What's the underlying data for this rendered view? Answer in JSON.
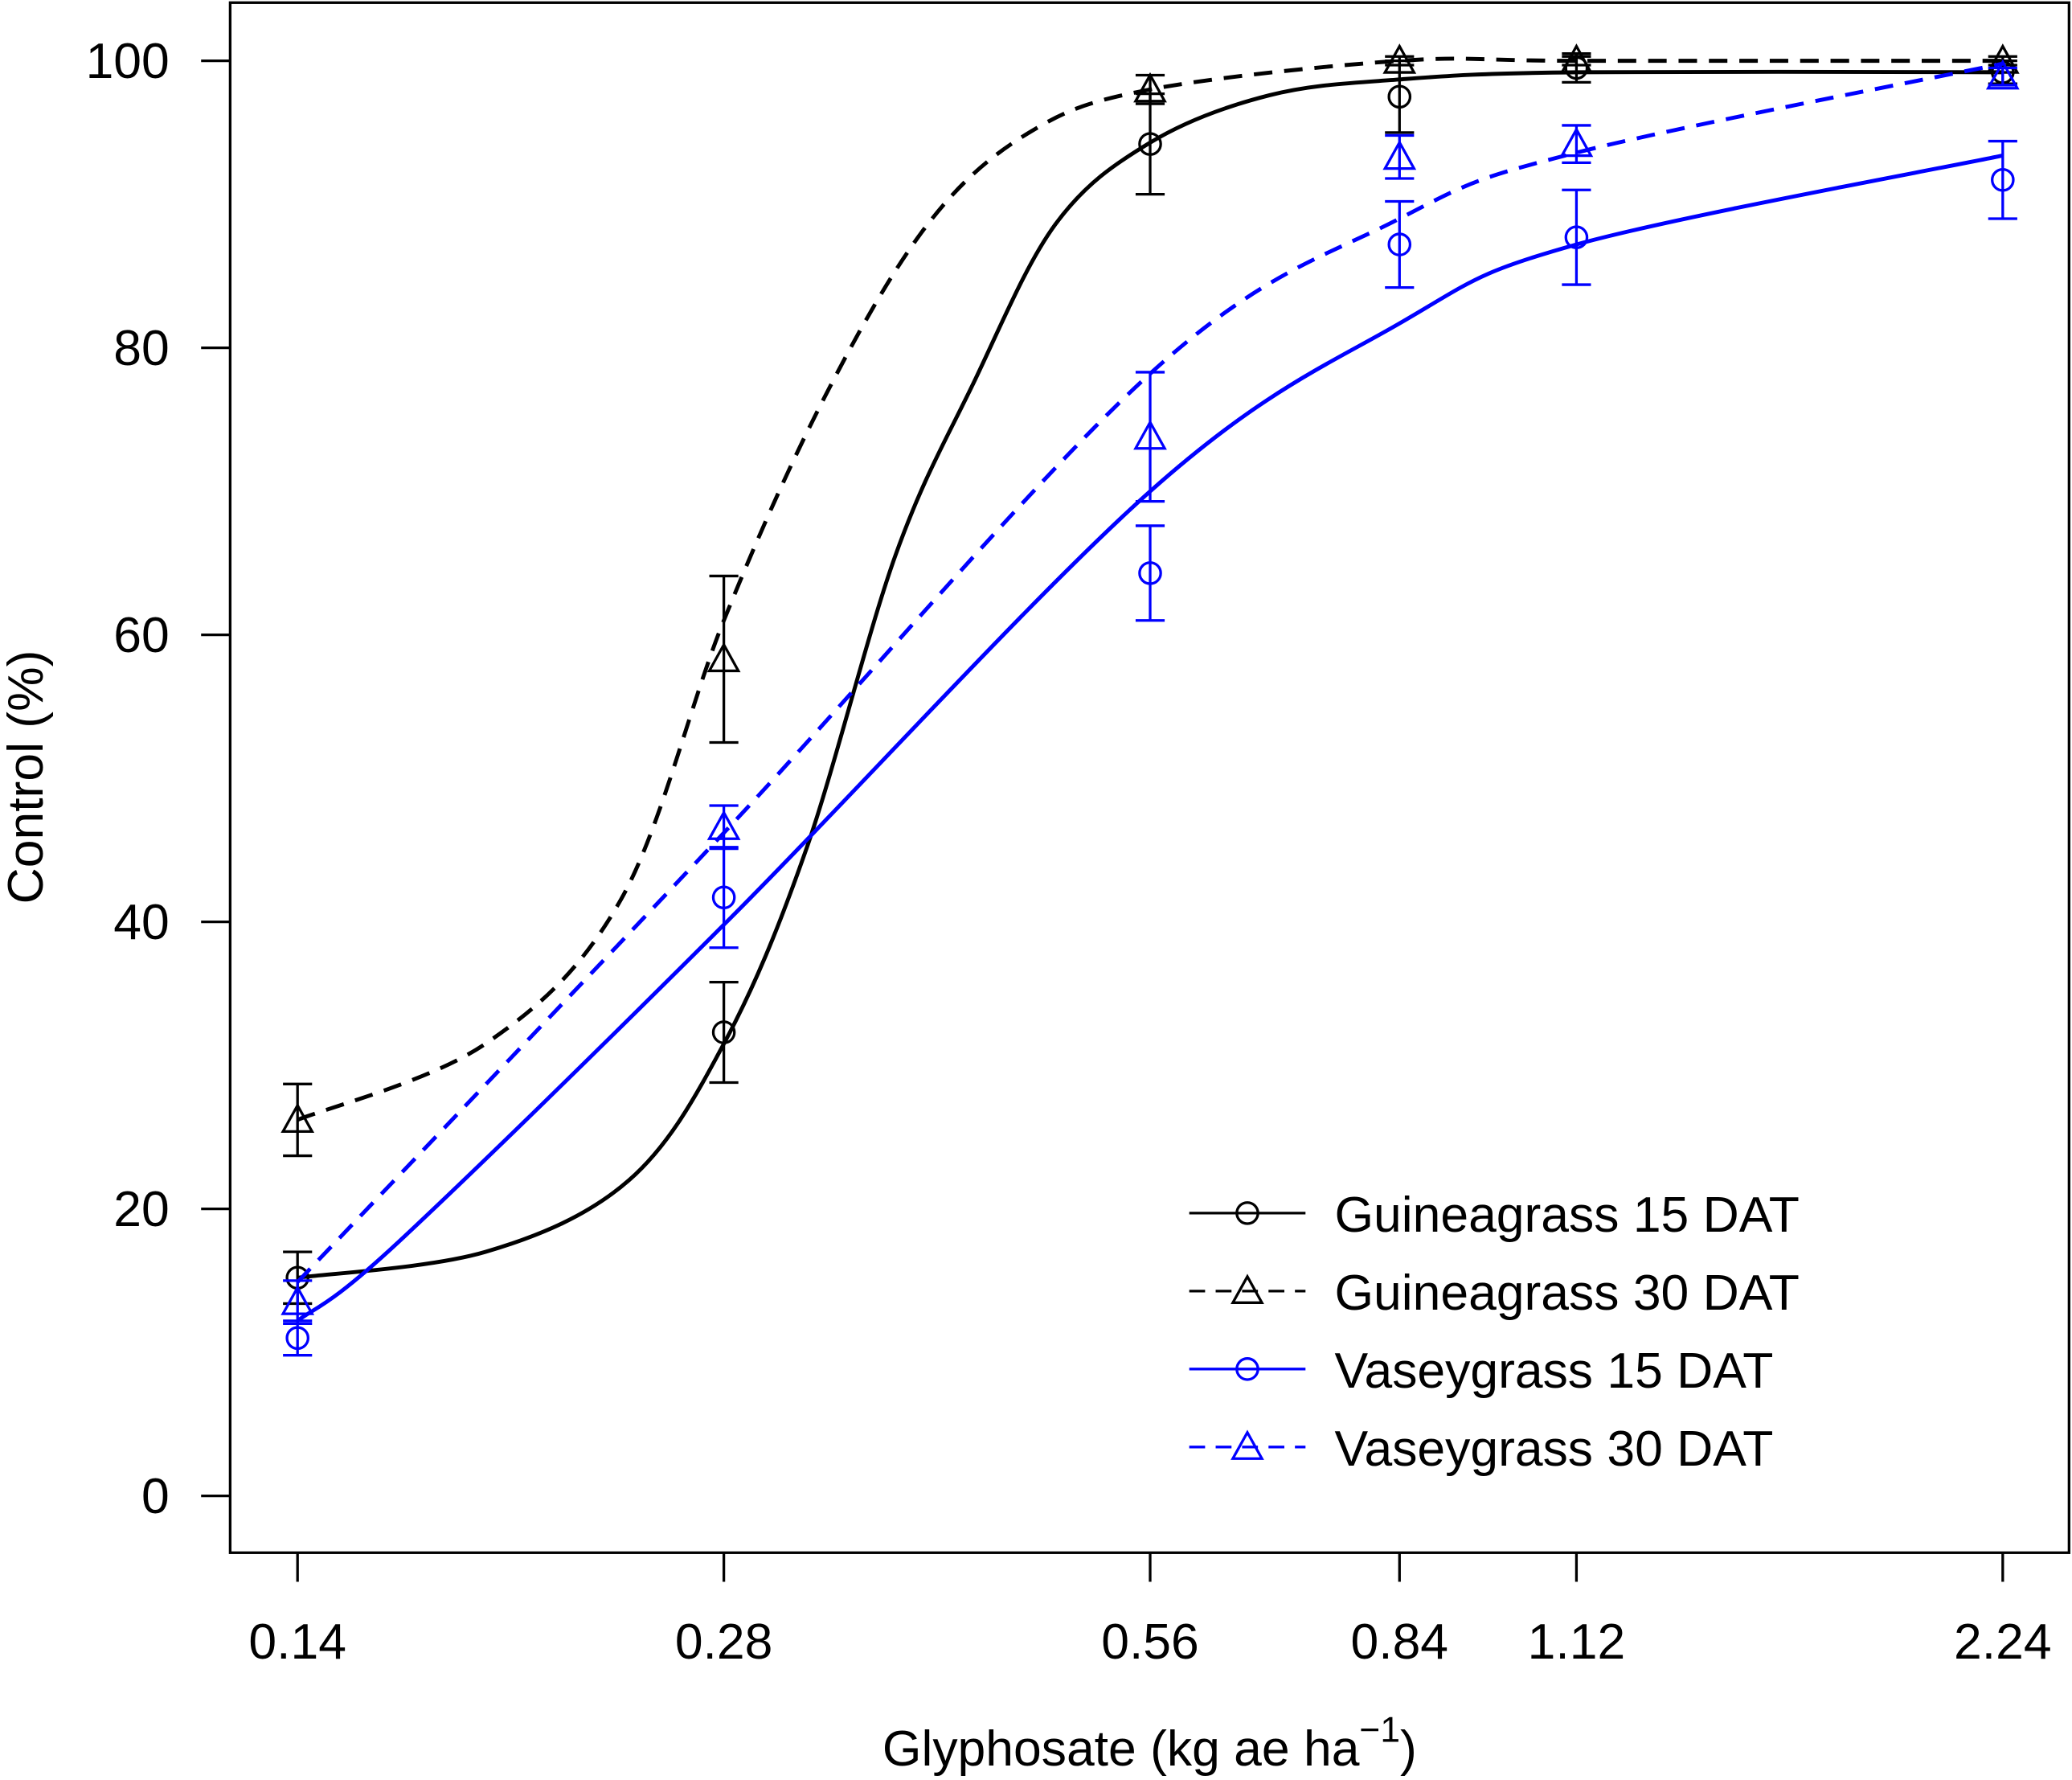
{
  "chart_data": {
    "type": "line",
    "title": "",
    "xlabel": "Glyphosate (kg ae ha",
    "xlabel_superscript": "−1",
    "xlabel_close": ")",
    "ylabel": "Control (%)",
    "x_scale": "log",
    "x_ticks": [
      0.14,
      0.28,
      0.56,
      0.84,
      1.12,
      2.24
    ],
    "x_tick_labels": [
      "0.14",
      "0.28",
      "0.56",
      "0.84",
      "1.12",
      "2.24"
    ],
    "y_ticks": [
      0,
      20,
      40,
      60,
      80,
      100
    ],
    "y_tick_labels": [
      "0",
      "20",
      "40",
      "60",
      "80",
      "100"
    ],
    "ylim": [
      -4,
      104
    ],
    "grid": false,
    "legend_position": "bottom-right",
    "series": [
      {
        "name": "Guineagrass 15 DAT",
        "color": "#000000",
        "line": "solid",
        "marker": "circle",
        "x": [
          0.14,
          0.28,
          0.56,
          0.84,
          1.12,
          2.24
        ],
        "y": [
          15.2,
          32.3,
          94.2,
          97.5,
          99.5,
          99.2
        ],
        "error": [
          1.8,
          3.5,
          3.5,
          2.5,
          1.0,
          0.8
        ],
        "fit": [
          [
            0.14,
            15.2
          ],
          [
            0.19,
            17
          ],
          [
            0.24,
            22
          ],
          [
            0.28,
            31.5
          ],
          [
            0.32,
            45
          ],
          [
            0.37,
            65.5
          ],
          [
            0.42,
            77.5
          ],
          [
            0.48,
            88.6
          ],
          [
            0.56,
            94.3
          ],
          [
            0.68,
            97.6
          ],
          [
            0.84,
            98.7
          ],
          [
            1.12,
            99.2
          ],
          [
            2.24,
            99.2
          ]
        ]
      },
      {
        "name": "Guineagrass 30 DAT",
        "color": "#000000",
        "line": "dashed",
        "marker": "triangle",
        "x": [
          0.14,
          0.28,
          0.56,
          0.84,
          1.12,
          2.24
        ],
        "y": [
          26.2,
          58.3,
          98.0,
          100.0,
          100.0,
          100.0
        ],
        "error": [
          2.5,
          5.8,
          1.0,
          0.3,
          0.3,
          0.3
        ],
        "fit": [
          [
            0.14,
            26.2
          ],
          [
            0.19,
            31.5
          ],
          [
            0.237,
            41.6
          ],
          [
            0.28,
            61
          ],
          [
            0.33,
            76.6
          ],
          [
            0.39,
            88.6
          ],
          [
            0.46,
            95
          ],
          [
            0.56,
            98
          ],
          [
            0.84,
            100
          ],
          [
            1.12,
            100
          ],
          [
            2.24,
            100
          ]
        ]
      },
      {
        "name": "Vaseygrass 15 DAT",
        "color": "#0000FF",
        "line": "solid",
        "marker": "circle",
        "x": [
          0.14,
          0.28,
          0.56,
          0.84,
          1.12,
          2.24
        ],
        "y": [
          11.0,
          41.7,
          64.3,
          87.2,
          87.7,
          91.7
        ],
        "error": [
          1.2,
          3.5,
          3.3,
          3.0,
          3.3,
          2.7
        ],
        "fit": [
          [
            0.14,
            12.2
          ],
          [
            0.165,
            17.7
          ],
          [
            0.28,
            39.8
          ],
          [
            0.56,
            70
          ],
          [
            0.84,
            81.7
          ],
          [
            1.12,
            87.2
          ],
          [
            2.24,
            93.4
          ]
        ]
      },
      {
        "name": "Vaseygrass 30 DAT",
        "color": "#0000FF",
        "line": "dashed",
        "marker": "triangle",
        "x": [
          0.14,
          0.28,
          0.56,
          0.84,
          1.12,
          2.24
        ],
        "y": [
          13.5,
          46.6,
          73.8,
          93.3,
          94.2,
          98.9
        ],
        "error": [
          1.5,
          1.5,
          4.5,
          1.5,
          1.3,
          0.6
        ],
        "fit": [
          [
            0.14,
            14.9
          ],
          [
            0.28,
            46.2
          ],
          [
            0.56,
            78.2
          ],
          [
            0.84,
            89
          ],
          [
            1.12,
            93.6
          ],
          [
            2.24,
            99.8
          ]
        ]
      }
    ]
  }
}
